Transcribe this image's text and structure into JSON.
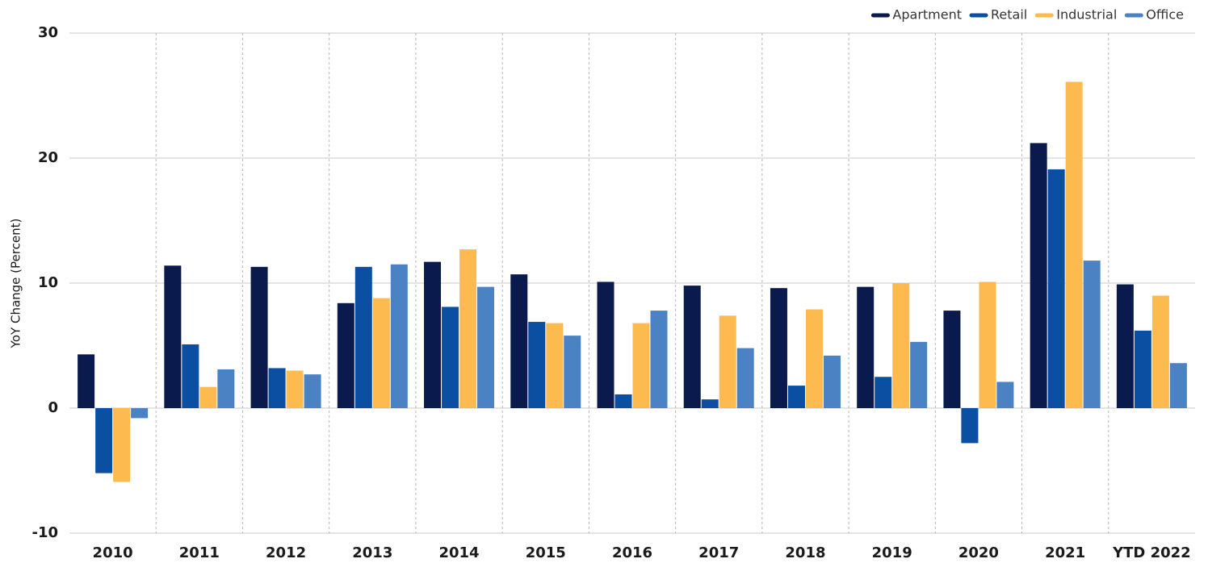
{
  "chart_data": {
    "type": "bar",
    "y_label": "YoY Change (Percent)",
    "categories": [
      "2010",
      "2011",
      "2012",
      "2013",
      "2014",
      "2015",
      "2016",
      "2017",
      "2018",
      "2019",
      "2020",
      "2021",
      "YTD 2022"
    ],
    "series": [
      {
        "name": "Apartment",
        "color": "#0b1a4d",
        "values": [
          4.3,
          11.4,
          11.3,
          8.4,
          11.7,
          10.7,
          10.1,
          9.8,
          9.6,
          9.7,
          7.8,
          21.2,
          9.9
        ]
      },
      {
        "name": "Retail",
        "color": "#0b4fa3",
        "values": [
          -5.2,
          5.1,
          3.2,
          11.3,
          8.1,
          6.9,
          1.1,
          0.7,
          1.8,
          2.5,
          -2.8,
          19.1,
          6.2
        ]
      },
      {
        "name": "Industrial",
        "color": "#fdbb4f",
        "values": [
          -5.9,
          1.7,
          3.0,
          8.8,
          12.7,
          6.8,
          6.8,
          7.4,
          7.9,
          10.0,
          10.1,
          26.1,
          9.0
        ]
      },
      {
        "name": "Office",
        "color": "#4a82c4",
        "values": [
          -0.8,
          3.1,
          2.7,
          11.5,
          9.7,
          5.8,
          7.8,
          4.8,
          4.2,
          5.3,
          2.1,
          11.8,
          3.6
        ]
      }
    ],
    "ylim": [
      -10,
      30
    ],
    "yticks": [
      -10,
      0,
      10,
      20,
      30
    ],
    "grid": true,
    "legend": "top-right"
  }
}
